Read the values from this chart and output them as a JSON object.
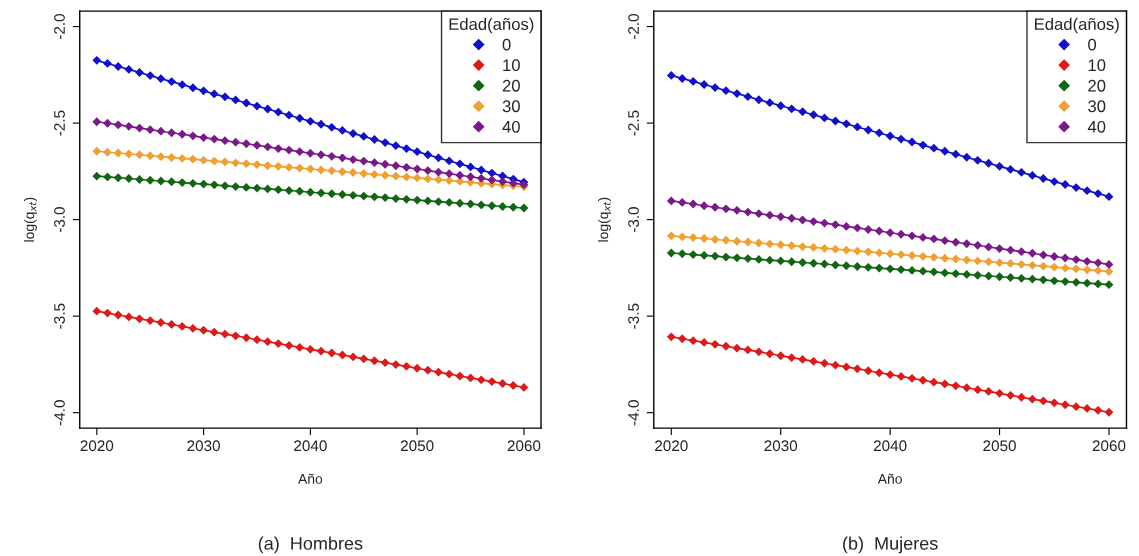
{
  "chart_data": [
    {
      "type": "line",
      "xlabel": "Año",
      "ylabel": "log(q$_{xt}$)",
      "legend_title": "Edad(años)",
      "legend": "top right",
      "marker": "diamond",
      "line_style": "solid",
      "grid": false,
      "annotations": [
        "(a)  Hombres"
      ],
      "xlim": [
        2018.4,
        2061.6
      ],
      "xticks": [
        2020,
        2030,
        2040,
        2050,
        2060
      ],
      "ylim": [
        -4.08,
        -1.92
      ],
      "yticks": [
        {
          "value": -4,
          "label": "-4.0"
        },
        {
          "value": -3.5,
          "label": "-3.5"
        },
        {
          "value": -3,
          "label": "-3.0"
        },
        {
          "value": -2.5,
          "label": "-2.5"
        },
        {
          "value": -2,
          "label": "-2.0"
        }
      ],
      "x": [
        2020,
        2021,
        2022,
        2023,
        2024,
        2025,
        2026,
        2027,
        2028,
        2029,
        2030,
        2031,
        2032,
        2033,
        2034,
        2035,
        2036,
        2037,
        2038,
        2039,
        2040,
        2041,
        2042,
        2043,
        2044,
        2045,
        2046,
        2047,
        2048,
        2049,
        2050,
        2051,
        2052,
        2053,
        2054,
        2055,
        2056,
        2057,
        2058,
        2059,
        2060
      ],
      "series": [
        {
          "name": "0",
          "color": "#1010cc",
          "values": [
            -2.175,
            -2.191,
            -2.207,
            -2.222,
            -2.238,
            -2.254,
            -2.27,
            -2.285,
            -2.301,
            -2.317,
            -2.333,
            -2.349,
            -2.364,
            -2.38,
            -2.396,
            -2.412,
            -2.427,
            -2.443,
            -2.459,
            -2.475,
            -2.491,
            -2.506,
            -2.522,
            -2.538,
            -2.554,
            -2.569,
            -2.585,
            -2.601,
            -2.617,
            -2.632,
            -2.648,
            -2.664,
            -2.68,
            -2.696,
            -2.711,
            -2.727,
            -2.743,
            -2.759,
            -2.774,
            -2.79,
            -2.806
          ]
        },
        {
          "name": "10",
          "color": "#dd1a1a",
          "values": [
            -3.474,
            -3.484,
            -3.494,
            -3.504,
            -3.514,
            -3.523,
            -3.533,
            -3.543,
            -3.553,
            -3.563,
            -3.573,
            -3.583,
            -3.593,
            -3.602,
            -3.612,
            -3.622,
            -3.632,
            -3.642,
            -3.652,
            -3.662,
            -3.672,
            -3.681,
            -3.691,
            -3.701,
            -3.711,
            -3.721,
            -3.731,
            -3.741,
            -3.751,
            -3.76,
            -3.77,
            -3.78,
            -3.79,
            -3.8,
            -3.81,
            -3.82,
            -3.83,
            -3.839,
            -3.849,
            -3.859,
            -3.869
          ]
        },
        {
          "name": "20",
          "color": "#116611",
          "values": [
            -2.775,
            -2.779,
            -2.783,
            -2.787,
            -2.792,
            -2.796,
            -2.8,
            -2.804,
            -2.808,
            -2.812,
            -2.816,
            -2.82,
            -2.825,
            -2.829,
            -2.833,
            -2.837,
            -2.841,
            -2.845,
            -2.849,
            -2.853,
            -2.858,
            -2.862,
            -2.866,
            -2.87,
            -2.874,
            -2.878,
            -2.882,
            -2.886,
            -2.891,
            -2.895,
            -2.899,
            -2.903,
            -2.907,
            -2.911,
            -2.915,
            -2.919,
            -2.924,
            -2.928,
            -2.932,
            -2.936,
            -2.94
          ]
        },
        {
          "name": "30",
          "color": "#f0a030",
          "values": [
            -2.646,
            -2.651,
            -2.655,
            -2.66,
            -2.664,
            -2.669,
            -2.674,
            -2.678,
            -2.683,
            -2.687,
            -2.692,
            -2.697,
            -2.701,
            -2.706,
            -2.71,
            -2.715,
            -2.72,
            -2.724,
            -2.729,
            -2.733,
            -2.738,
            -2.743,
            -2.747,
            -2.752,
            -2.756,
            -2.761,
            -2.766,
            -2.77,
            -2.775,
            -2.779,
            -2.784,
            -2.789,
            -2.793,
            -2.798,
            -2.802,
            -2.807,
            -2.812,
            -2.816,
            -2.821,
            -2.825,
            -2.83
          ]
        },
        {
          "name": "40",
          "color": "#7a1a8a",
          "values": [
            -2.493,
            -2.501,
            -2.509,
            -2.517,
            -2.526,
            -2.534,
            -2.542,
            -2.55,
            -2.558,
            -2.566,
            -2.575,
            -2.583,
            -2.591,
            -2.599,
            -2.607,
            -2.615,
            -2.623,
            -2.632,
            -2.64,
            -2.648,
            -2.656,
            -2.664,
            -2.672,
            -2.68,
            -2.689,
            -2.697,
            -2.705,
            -2.713,
            -2.721,
            -2.729,
            -2.738,
            -2.746,
            -2.754,
            -2.762,
            -2.77,
            -2.778,
            -2.786,
            -2.795,
            -2.803,
            -2.811,
            -2.819
          ]
        }
      ]
    },
    {
      "type": "line",
      "xlabel": "Año",
      "ylabel": "log(q$_{xt}$)",
      "legend_title": "Edad(años)",
      "legend": "top right",
      "marker": "diamond",
      "line_style": "solid",
      "grid": false,
      "annotations": [
        "(b)  Mujeres"
      ],
      "xlim": [
        2018.4,
        2061.6
      ],
      "xticks": [
        2020,
        2030,
        2040,
        2050,
        2060
      ],
      "ylim": [
        -4.08,
        -1.92
      ],
      "yticks": [
        {
          "value": -4,
          "label": "-4.0"
        },
        {
          "value": -3.5,
          "label": "-3.5"
        },
        {
          "value": -3,
          "label": "-3.0"
        },
        {
          "value": -2.5,
          "label": "-2.5"
        },
        {
          "value": -2,
          "label": "-2.0"
        }
      ],
      "x": [
        2020,
        2021,
        2022,
        2023,
        2024,
        2025,
        2026,
        2027,
        2028,
        2029,
        2030,
        2031,
        2032,
        2033,
        2034,
        2035,
        2036,
        2037,
        2038,
        2039,
        2040,
        2041,
        2042,
        2043,
        2044,
        2045,
        2046,
        2047,
        2048,
        2049,
        2050,
        2051,
        2052,
        2053,
        2054,
        2055,
        2056,
        2057,
        2058,
        2059,
        2060
      ],
      "series": [
        {
          "name": "0",
          "color": "#1010cc",
          "values": [
            -2.253,
            -2.269,
            -2.284,
            -2.3,
            -2.316,
            -2.332,
            -2.347,
            -2.363,
            -2.379,
            -2.394,
            -2.41,
            -2.426,
            -2.441,
            -2.457,
            -2.473,
            -2.489,
            -2.504,
            -2.52,
            -2.536,
            -2.551,
            -2.567,
            -2.583,
            -2.598,
            -2.614,
            -2.63,
            -2.646,
            -2.661,
            -2.677,
            -2.693,
            -2.708,
            -2.724,
            -2.74,
            -2.755,
            -2.771,
            -2.787,
            -2.803,
            -2.818,
            -2.834,
            -2.85,
            -2.865,
            -2.881
          ]
        },
        {
          "name": "10",
          "color": "#dd1a1a",
          "values": [
            -3.607,
            -3.617,
            -3.627,
            -3.636,
            -3.646,
            -3.656,
            -3.666,
            -3.675,
            -3.685,
            -3.695,
            -3.705,
            -3.715,
            -3.724,
            -3.734,
            -3.744,
            -3.754,
            -3.763,
            -3.773,
            -3.783,
            -3.793,
            -3.803,
            -3.812,
            -3.822,
            -3.832,
            -3.842,
            -3.851,
            -3.861,
            -3.871,
            -3.881,
            -3.89,
            -3.9,
            -3.91,
            -3.92,
            -3.93,
            -3.939,
            -3.949,
            -3.959,
            -3.969,
            -3.978,
            -3.988,
            -3.998
          ]
        },
        {
          "name": "20",
          "color": "#116611",
          "values": [
            -3.173,
            -3.177,
            -3.181,
            -3.185,
            -3.189,
            -3.194,
            -3.198,
            -3.202,
            -3.206,
            -3.21,
            -3.214,
            -3.218,
            -3.222,
            -3.226,
            -3.23,
            -3.235,
            -3.239,
            -3.243,
            -3.247,
            -3.251,
            -3.255,
            -3.259,
            -3.263,
            -3.267,
            -3.271,
            -3.276,
            -3.28,
            -3.284,
            -3.288,
            -3.292,
            -3.296,
            -3.3,
            -3.304,
            -3.308,
            -3.312,
            -3.317,
            -3.321,
            -3.325,
            -3.329,
            -3.333,
            -3.337
          ]
        },
        {
          "name": "30",
          "color": "#f0a030",
          "values": [
            -3.084,
            -3.089,
            -3.093,
            -3.098,
            -3.103,
            -3.107,
            -3.112,
            -3.116,
            -3.121,
            -3.126,
            -3.13,
            -3.135,
            -3.14,
            -3.144,
            -3.149,
            -3.153,
            -3.158,
            -3.163,
            -3.167,
            -3.172,
            -3.177,
            -3.181,
            -3.186,
            -3.19,
            -3.195,
            -3.2,
            -3.204,
            -3.209,
            -3.214,
            -3.218,
            -3.223,
            -3.227,
            -3.232,
            -3.237,
            -3.241,
            -3.246,
            -3.251,
            -3.255,
            -3.26,
            -3.264,
            -3.269
          ]
        },
        {
          "name": "40",
          "color": "#7a1a8a",
          "values": [
            -2.903,
            -2.911,
            -2.919,
            -2.928,
            -2.936,
            -2.944,
            -2.952,
            -2.961,
            -2.969,
            -2.977,
            -2.985,
            -2.993,
            -3.002,
            -3.01,
            -3.018,
            -3.026,
            -3.035,
            -3.043,
            -3.051,
            -3.059,
            -3.068,
            -3.076,
            -3.084,
            -3.092,
            -3.1,
            -3.109,
            -3.117,
            -3.125,
            -3.133,
            -3.142,
            -3.15,
            -3.158,
            -3.166,
            -3.174,
            -3.183,
            -3.191,
            -3.199,
            -3.207,
            -3.216,
            -3.224,
            -3.232
          ]
        }
      ]
    }
  ]
}
